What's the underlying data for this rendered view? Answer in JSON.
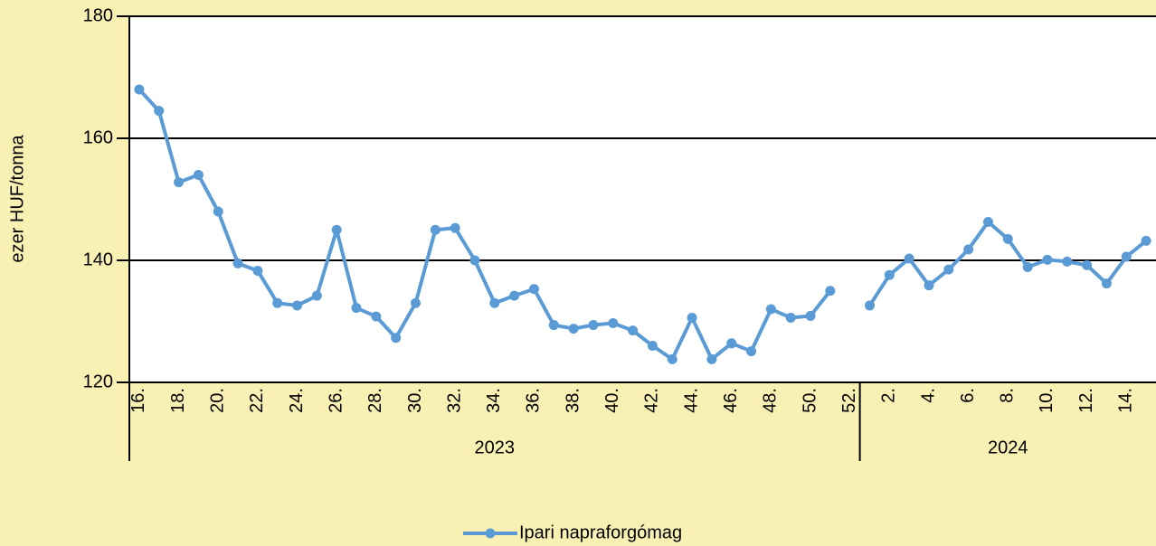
{
  "chart_data": {
    "type": "line",
    "y_label": "ezer HUF/tonna",
    "categories": [
      "16.",
      null,
      "18.",
      null,
      "20.",
      null,
      "22.",
      null,
      "24.",
      null,
      "26.",
      null,
      "28.",
      null,
      "30.",
      null,
      "32.",
      null,
      "34.",
      null,
      "36.",
      null,
      "38.",
      null,
      "40.",
      null,
      "42.",
      null,
      "44.",
      null,
      "46.",
      null,
      "48.",
      null,
      "50.",
      null,
      "52.",
      null,
      "2.",
      null,
      "4.",
      null,
      "6.",
      null,
      "8.",
      null,
      "10.",
      null,
      "12.",
      null,
      "14.",
      null
    ],
    "x_groups": [
      {
        "label": "2023",
        "span": 37
      },
      {
        "label": "2024",
        "span": 15
      }
    ],
    "series": [
      {
        "name": "Ipari napraforgómag",
        "color": "#5b9bd5",
        "values": [
          168,
          164.5,
          152.8,
          154,
          148,
          139.5,
          138.3,
          133,
          132.6,
          134.2,
          145,
          132.2,
          130.8,
          127.3,
          133,
          145,
          145.3,
          140,
          133,
          134.2,
          135.3,
          129.4,
          128.8,
          129.4,
          129.7,
          128.5,
          126,
          123.8,
          130.6,
          123.8,
          126.4,
          125.1,
          132,
          130.6,
          130.9,
          135,
          null,
          132.6,
          137.6,
          140.3,
          135.9,
          138.5,
          141.8,
          146.3,
          143.5,
          138.9,
          140.1,
          139.8,
          139.2,
          136.2,
          140.6,
          143.2
        ]
      }
    ],
    "ylim": [
      120,
      180
    ],
    "yticks": [
      120,
      140,
      160,
      180
    ],
    "grid": true,
    "legend": "bottom"
  }
}
